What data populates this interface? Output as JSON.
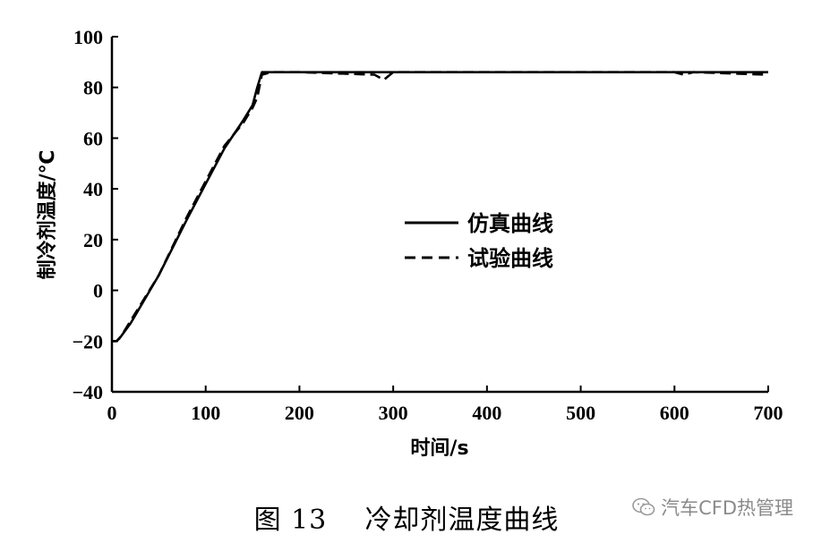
{
  "chart_data": {
    "type": "line",
    "xlabel": "时间/s",
    "ylabel": "制冷剂温度/℃",
    "xlim": [
      0,
      700
    ],
    "ylim": [
      -40,
      100
    ],
    "xticks": [
      "0",
      "100",
      "200",
      "300",
      "400",
      "500",
      "600",
      "700"
    ],
    "yticks": [
      "−40",
      "−20",
      "0",
      "20",
      "40",
      "60",
      "80",
      "100"
    ],
    "xtick_values": [
      0,
      100,
      200,
      300,
      400,
      500,
      600,
      700
    ],
    "ytick_values": [
      -40,
      -20,
      0,
      20,
      40,
      60,
      80,
      100
    ],
    "legend_position": "center-right",
    "series": [
      {
        "name": "仿真曲线",
        "style": "solid",
        "color": "#000000",
        "x": [
          0,
          5,
          8,
          20,
          50,
          80,
          100,
          120,
          140,
          150,
          155,
          160,
          200,
          300,
          400,
          500,
          600,
          700
        ],
        "y": [
          -20,
          -20,
          -19,
          -13,
          6,
          28,
          42,
          56,
          67,
          73,
          80,
          86,
          86,
          86,
          86,
          86,
          86,
          86
        ]
      },
      {
        "name": "试验曲线",
        "style": "dashed",
        "color": "#000000",
        "x": [
          0,
          5,
          10,
          20,
          50,
          80,
          100,
          120,
          140,
          150,
          155,
          160,
          170,
          200,
          280,
          290,
          300,
          400,
          500,
          600,
          610,
          620,
          700
        ],
        "y": [
          -20,
          -20,
          -18,
          -12,
          6,
          29,
          43,
          57,
          66,
          72,
          76,
          85,
          86,
          86,
          85,
          83,
          86,
          86,
          86,
          86,
          85,
          86,
          85
        ]
      }
    ]
  },
  "caption": {
    "figure_label": "图 13",
    "title": "冷却剂温度曲线"
  },
  "watermark": {
    "text": "汽车CFD热管理"
  }
}
